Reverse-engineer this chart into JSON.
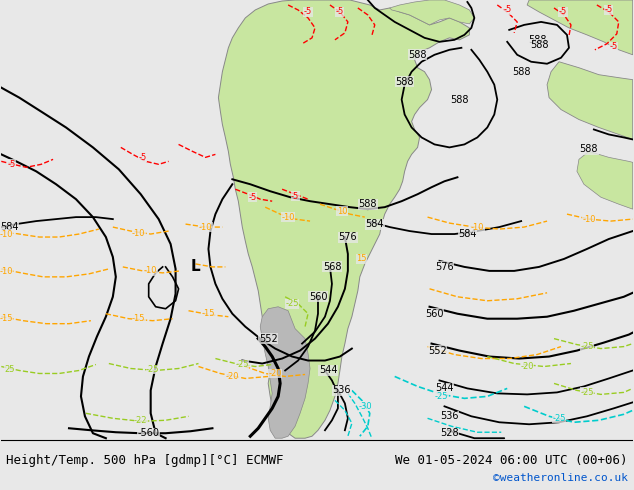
{
  "title_left": "Height/Temp. 500 hPa [gdmp][°C] ECMWF",
  "title_right": "We 01-05-2024 06:00 UTC (00+06)",
  "credit": "©weatheronline.co.uk",
  "bg_color": "#e8e8e8",
  "land_color": "#c8e6a0",
  "border_color": "#888888",
  "title_fontsize": 9,
  "credit_fontsize": 8,
  "credit_color": "#0055cc",
  "figsize": [
    6.34,
    4.9
  ],
  "dpi": 100
}
